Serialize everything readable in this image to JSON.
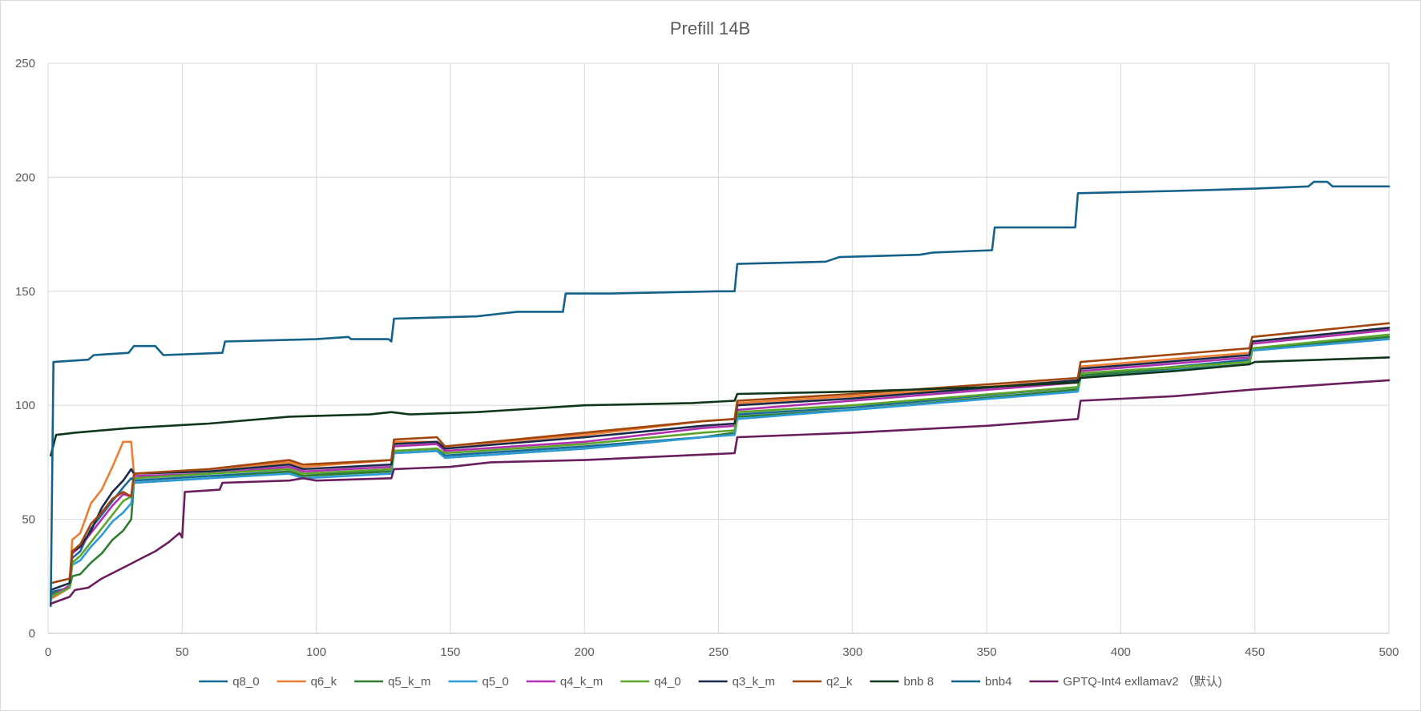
{
  "chart_data": {
    "type": "line",
    "title": "Prefill 14B",
    "xlabel": "",
    "ylabel": "",
    "xlim": [
      0,
      500
    ],
    "ylim": [
      0,
      250
    ],
    "x_ticks": [
      "0",
      "50",
      "100",
      "150",
      "200",
      "250",
      "300",
      "350",
      "400",
      "450",
      "500"
    ],
    "y_ticks": [
      "0",
      "50",
      "100",
      "150",
      "200",
      "250"
    ],
    "grid": true,
    "legend_position": "bottom",
    "series": [
      {
        "name": "q8_0",
        "color": "#1a6a96",
        "points": [
          [
            1,
            18
          ],
          [
            8,
            20
          ],
          [
            9,
            33
          ],
          [
            12,
            36
          ],
          [
            16,
            46
          ],
          [
            20,
            52
          ],
          [
            24,
            58
          ],
          [
            28,
            64
          ],
          [
            31,
            68
          ],
          [
            32,
            67
          ],
          [
            60,
            69
          ],
          [
            90,
            71
          ],
          [
            95,
            69
          ],
          [
            128,
            72
          ],
          [
            129,
            80
          ],
          [
            145,
            81
          ],
          [
            148,
            78
          ],
          [
            200,
            82
          ],
          [
            244,
            86
          ],
          [
            256,
            88
          ],
          [
            257,
            96
          ],
          [
            300,
            99
          ],
          [
            384,
            108
          ],
          [
            385,
            113
          ],
          [
            448,
            120
          ],
          [
            449,
            125
          ],
          [
            500,
            130
          ]
        ]
      },
      {
        "name": "q6_k",
        "color": "#ed7d31",
        "points": [
          [
            1,
            15
          ],
          [
            8,
            20
          ],
          [
            9,
            41
          ],
          [
            12,
            44
          ],
          [
            16,
            57
          ],
          [
            20,
            63
          ],
          [
            24,
            73
          ],
          [
            28,
            84
          ],
          [
            31,
            84
          ],
          [
            32,
            70
          ],
          [
            60,
            72
          ],
          [
            90,
            75
          ],
          [
            95,
            73
          ],
          [
            128,
            76
          ],
          [
            129,
            84
          ],
          [
            145,
            84
          ],
          [
            148,
            82
          ],
          [
            200,
            87
          ],
          [
            244,
            93
          ],
          [
            256,
            94
          ],
          [
            257,
            101
          ],
          [
            300,
            104
          ],
          [
            384,
            111
          ],
          [
            385,
            117
          ],
          [
            448,
            123
          ],
          [
            449,
            128
          ],
          [
            500,
            134
          ]
        ]
      },
      {
        "name": "q5_k_m",
        "color": "#2e7d32",
        "points": [
          [
            1,
            17
          ],
          [
            8,
            20
          ],
          [
            9,
            25
          ],
          [
            12,
            26
          ],
          [
            16,
            31
          ],
          [
            20,
            35
          ],
          [
            24,
            41
          ],
          [
            28,
            45
          ],
          [
            31,
            50
          ],
          [
            32,
            66
          ],
          [
            60,
            68
          ],
          [
            90,
            71
          ],
          [
            95,
            69
          ],
          [
            128,
            71
          ],
          [
            129,
            79
          ],
          [
            145,
            80
          ],
          [
            148,
            77
          ],
          [
            200,
            81
          ],
          [
            244,
            86
          ],
          [
            256,
            88
          ],
          [
            257,
            95
          ],
          [
            300,
            98
          ],
          [
            384,
            107
          ],
          [
            385,
            113
          ],
          [
            448,
            118
          ],
          [
            449,
            124
          ],
          [
            500,
            130
          ]
        ]
      },
      {
        "name": "q5_0",
        "color": "#2e9bd6",
        "points": [
          [
            1,
            16
          ],
          [
            8,
            20
          ],
          [
            9,
            30
          ],
          [
            12,
            32
          ],
          [
            16,
            38
          ],
          [
            20,
            43
          ],
          [
            24,
            49
          ],
          [
            28,
            53
          ],
          [
            31,
            57
          ],
          [
            32,
            66
          ],
          [
            60,
            68
          ],
          [
            90,
            70
          ],
          [
            95,
            68
          ],
          [
            128,
            70
          ],
          [
            129,
            79
          ],
          [
            145,
            80
          ],
          [
            148,
            77
          ],
          [
            200,
            81
          ],
          [
            244,
            86
          ],
          [
            256,
            87
          ],
          [
            257,
            94
          ],
          [
            300,
            98
          ],
          [
            384,
            106
          ],
          [
            385,
            112
          ],
          [
            448,
            118
          ],
          [
            449,
            124
          ],
          [
            500,
            129
          ]
        ]
      },
      {
        "name": "q4_k_m",
        "color": "#b030b0",
        "points": [
          [
            1,
            16
          ],
          [
            8,
            21
          ],
          [
            9,
            35
          ],
          [
            12,
            38
          ],
          [
            16,
            44
          ],
          [
            20,
            50
          ],
          [
            24,
            56
          ],
          [
            28,
            61
          ],
          [
            31,
            60
          ],
          [
            32,
            69
          ],
          [
            60,
            70
          ],
          [
            90,
            73
          ],
          [
            95,
            71
          ],
          [
            128,
            73
          ],
          [
            129,
            82
          ],
          [
            145,
            83
          ],
          [
            148,
            80
          ],
          [
            200,
            84
          ],
          [
            244,
            90
          ],
          [
            256,
            91
          ],
          [
            257,
            98
          ],
          [
            300,
            102
          ],
          [
            384,
            110
          ],
          [
            385,
            115
          ],
          [
            448,
            121
          ],
          [
            449,
            127
          ],
          [
            500,
            133
          ]
        ]
      },
      {
        "name": "q4_0",
        "color": "#5aa52a",
        "points": [
          [
            1,
            16
          ],
          [
            8,
            20
          ],
          [
            9,
            31
          ],
          [
            12,
            34
          ],
          [
            16,
            40
          ],
          [
            20,
            46
          ],
          [
            24,
            52
          ],
          [
            28,
            58
          ],
          [
            31,
            60
          ],
          [
            32,
            68
          ],
          [
            60,
            70
          ],
          [
            90,
            72
          ],
          [
            95,
            70
          ],
          [
            128,
            72
          ],
          [
            129,
            80
          ],
          [
            145,
            81
          ],
          [
            148,
            79
          ],
          [
            200,
            83
          ],
          [
            244,
            88
          ],
          [
            256,
            89
          ],
          [
            257,
            97
          ],
          [
            300,
            100
          ],
          [
            384,
            108
          ],
          [
            385,
            114
          ],
          [
            448,
            119
          ],
          [
            449,
            125
          ],
          [
            500,
            131
          ]
        ]
      },
      {
        "name": "q3_k_m",
        "color": "#1b2a4a",
        "points": [
          [
            1,
            19
          ],
          [
            8,
            22
          ],
          [
            9,
            36
          ],
          [
            12,
            38
          ],
          [
            16,
            45
          ],
          [
            20,
            55
          ],
          [
            24,
            62
          ],
          [
            28,
            67
          ],
          [
            31,
            72
          ],
          [
            32,
            70
          ],
          [
            60,
            71
          ],
          [
            90,
            74
          ],
          [
            95,
            72
          ],
          [
            128,
            74
          ],
          [
            129,
            83
          ],
          [
            145,
            84
          ],
          [
            148,
            81
          ],
          [
            200,
            86
          ],
          [
            244,
            91
          ],
          [
            256,
            92
          ],
          [
            257,
            100
          ],
          [
            300,
            103
          ],
          [
            384,
            111
          ],
          [
            385,
            116
          ],
          [
            448,
            122
          ],
          [
            449,
            128
          ],
          [
            500,
            134
          ]
        ]
      },
      {
        "name": "q2_k",
        "color": "#a0460e",
        "points": [
          [
            1,
            22
          ],
          [
            8,
            24
          ],
          [
            9,
            36
          ],
          [
            12,
            39
          ],
          [
            16,
            48
          ],
          [
            20,
            53
          ],
          [
            24,
            59
          ],
          [
            28,
            62
          ],
          [
            31,
            60
          ],
          [
            32,
            70
          ],
          [
            60,
            72
          ],
          [
            90,
            76
          ],
          [
            95,
            74
          ],
          [
            128,
            76
          ],
          [
            129,
            85
          ],
          [
            145,
            86
          ],
          [
            148,
            82
          ],
          [
            200,
            88
          ],
          [
            244,
            93
          ],
          [
            256,
            94
          ],
          [
            257,
            102
          ],
          [
            300,
            105
          ],
          [
            384,
            112
          ],
          [
            385,
            119
          ],
          [
            448,
            125
          ],
          [
            449,
            130
          ],
          [
            500,
            136
          ]
        ]
      },
      {
        "name": "bnb 8",
        "color": "#10361a",
        "points": [
          [
            1,
            78
          ],
          [
            3,
            87
          ],
          [
            10,
            88
          ],
          [
            30,
            90
          ],
          [
            60,
            92
          ],
          [
            90,
            95
          ],
          [
            120,
            96
          ],
          [
            128,
            97
          ],
          [
            135,
            96
          ],
          [
            160,
            97
          ],
          [
            200,
            100
          ],
          [
            240,
            101
          ],
          [
            256,
            102
          ],
          [
            257,
            105
          ],
          [
            300,
            106
          ],
          [
            350,
            108
          ],
          [
            384,
            110
          ],
          [
            385,
            112
          ],
          [
            420,
            115
          ],
          [
            448,
            118
          ],
          [
            450,
            119
          ],
          [
            500,
            121
          ]
        ]
      },
      {
        "name": "bnb4",
        "color": "#14628a",
        "points": [
          [
            1,
            12
          ],
          [
            2,
            119
          ],
          [
            15,
            120
          ],
          [
            17,
            122
          ],
          [
            30,
            123
          ],
          [
            32,
            126
          ],
          [
            40,
            126
          ],
          [
            43,
            122
          ],
          [
            65,
            123
          ],
          [
            66,
            128
          ],
          [
            100,
            129
          ],
          [
            112,
            130
          ],
          [
            113,
            129
          ],
          [
            127,
            129
          ],
          [
            128,
            128
          ],
          [
            129,
            138
          ],
          [
            160,
            139
          ],
          [
            175,
            141
          ],
          [
            192,
            141
          ],
          [
            193,
            149
          ],
          [
            210,
            149
          ],
          [
            250,
            150
          ],
          [
            256,
            150
          ],
          [
            257,
            162
          ],
          [
            290,
            163
          ],
          [
            295,
            165
          ],
          [
            325,
            166
          ],
          [
            330,
            167
          ],
          [
            352,
            168
          ],
          [
            353,
            178
          ],
          [
            383,
            178
          ],
          [
            384,
            193
          ],
          [
            420,
            194
          ],
          [
            450,
            195
          ],
          [
            470,
            196
          ],
          [
            472,
            198
          ],
          [
            477,
            198
          ],
          [
            479,
            196
          ],
          [
            500,
            196
          ]
        ]
      },
      {
        "name": "GPTQ-Int4 exllamav2 （默认)",
        "color": "#6b1e5e",
        "points": [
          [
            1,
            13
          ],
          [
            8,
            16
          ],
          [
            10,
            19
          ],
          [
            15,
            20
          ],
          [
            20,
            24
          ],
          [
            25,
            27
          ],
          [
            30,
            30
          ],
          [
            35,
            33
          ],
          [
            40,
            36
          ],
          [
            45,
            40
          ],
          [
            49,
            44
          ],
          [
            50,
            42
          ],
          [
            51,
            62
          ],
          [
            64,
            63
          ],
          [
            65,
            66
          ],
          [
            90,
            67
          ],
          [
            95,
            68
          ],
          [
            100,
            67
          ],
          [
            128,
            68
          ],
          [
            129,
            72
          ],
          [
            150,
            73
          ],
          [
            165,
            75
          ],
          [
            200,
            76
          ],
          [
            256,
            79
          ],
          [
            257,
            86
          ],
          [
            300,
            88
          ],
          [
            350,
            91
          ],
          [
            384,
            94
          ],
          [
            385,
            102
          ],
          [
            420,
            104
          ],
          [
            450,
            107
          ],
          [
            500,
            111
          ]
        ]
      }
    ]
  }
}
